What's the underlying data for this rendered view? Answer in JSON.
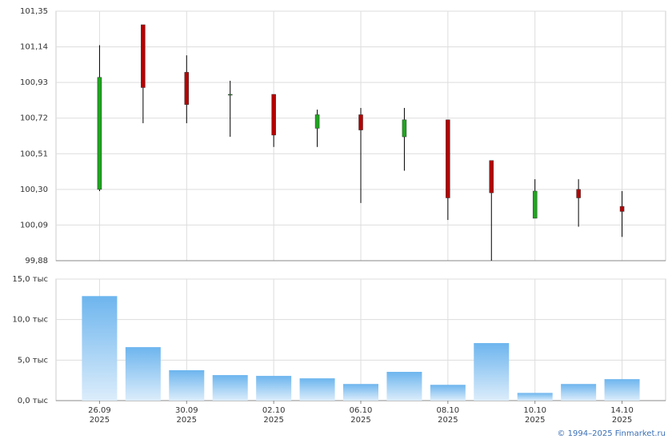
{
  "chart_data": [
    {
      "type": "candlestick",
      "open": [
        100.3,
        101.27,
        100.99,
        100.86,
        100.86,
        100.66,
        100.74,
        100.61,
        100.71,
        100.47,
        100.13,
        100.3,
        100.2
      ],
      "high": [
        101.15,
        101.27,
        101.09,
        100.94,
        100.86,
        100.77,
        100.78,
        100.78,
        100.71,
        100.47,
        100.36,
        100.36,
        100.29
      ],
      "low": [
        100.29,
        100.69,
        100.69,
        100.61,
        100.55,
        100.55,
        100.22,
        100.41,
        100.12,
        99.88,
        100.13,
        100.08,
        100.02
      ],
      "close": [
        100.96,
        100.9,
        100.8,
        100.86,
        100.62,
        100.74,
        100.65,
        100.71,
        100.25,
        100.28,
        100.29,
        100.25,
        100.17
      ],
      "up_color": "#1fa51f",
      "down_color": "#b50000",
      "ylim": [
        99.88,
        101.35
      ],
      "yticks": [
        {
          "value": 99.88,
          "label": "99,88"
        },
        {
          "value": 100.09,
          "label": "100,09"
        },
        {
          "value": 100.3,
          "label": "100,30"
        },
        {
          "value": 100.51,
          "label": "100,51"
        },
        {
          "value": 100.72,
          "label": "100,72"
        },
        {
          "value": 100.93,
          "label": "100,93"
        },
        {
          "value": 101.14,
          "label": "101,14"
        },
        {
          "value": 101.35,
          "label": "101,35"
        }
      ],
      "grid": true
    },
    {
      "type": "bar",
      "categories": [
        "26.09",
        null,
        "30.09",
        null,
        "02.10",
        null,
        "06.10",
        null,
        "08.10",
        null,
        "10.10",
        null,
        "14.10"
      ],
      "category_years": [
        "2025",
        null,
        "2025",
        null,
        "2025",
        null,
        "2025",
        null,
        "2025",
        null,
        "2025",
        null,
        "2025"
      ],
      "values": [
        12900,
        6600,
        3750,
        3150,
        3050,
        2750,
        2050,
        3550,
        1950,
        7100,
        950,
        2050,
        2650
      ],
      "color": "#6db5ee",
      "ylim": [
        0,
        15000
      ],
      "yticks": [
        {
          "value": 0,
          "label": "0,0 тыс"
        },
        {
          "value": 5000,
          "label": "5,0 тыс"
        },
        {
          "value": 10000,
          "label": "10,0 тыс"
        },
        {
          "value": 15000,
          "label": "15,0 тыс"
        }
      ],
      "grid": true
    }
  ],
  "footer": "© 1994–2025 Finmarket.ru"
}
